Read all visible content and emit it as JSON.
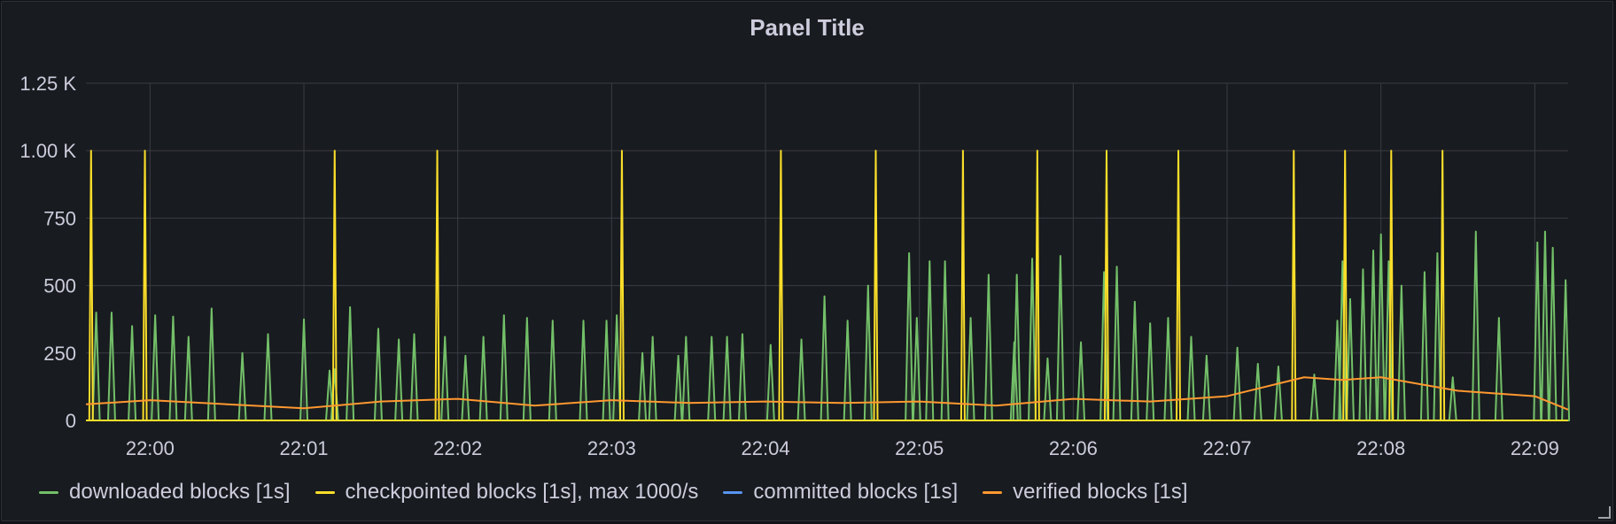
{
  "panel": {
    "title": "Panel Title",
    "colors": {
      "background": "#181b1f",
      "grid": "#3a3d44",
      "text": "#ccccdc"
    }
  },
  "chart_data": {
    "type": "line",
    "title": "Panel Title",
    "xlabel": "",
    "ylabel": "",
    "x_range": [
      "21:59:35",
      "22:09:13"
    ],
    "x_ticks": [
      "22:00",
      "22:01",
      "22:02",
      "22:03",
      "22:04",
      "22:05",
      "22:06",
      "22:07",
      "22:08",
      "22:09"
    ],
    "ylim": [
      0,
      1250
    ],
    "y_ticks": [
      {
        "value": 0,
        "label": "0"
      },
      {
        "value": 250,
        "label": "250"
      },
      {
        "value": 500,
        "label": "500"
      },
      {
        "value": 750,
        "label": "750"
      },
      {
        "value": 1000,
        "label": "1.00 K"
      },
      {
        "value": 1250,
        "label": "1.25 K"
      }
    ],
    "grid": true,
    "legend_position": "bottom-left",
    "series": [
      {
        "name": "downloaded blocks [1s]",
        "color": "#73bf69",
        "fill": true,
        "points": [
          [
            "21:59:39",
            400
          ],
          [
            "21:59:45",
            400
          ],
          [
            "21:59:53",
            350
          ],
          [
            "22:00:02",
            390
          ],
          [
            "22:00:09",
            385
          ],
          [
            "22:00:15",
            310
          ],
          [
            "22:00:24",
            415
          ],
          [
            "22:00:36",
            250
          ],
          [
            "22:00:46",
            320
          ],
          [
            "22:01:00",
            375
          ],
          [
            "22:01:10",
            185
          ],
          [
            "22:01:12",
            190
          ],
          [
            "22:01:18",
            420
          ],
          [
            "22:01:29",
            340
          ],
          [
            "22:01:37",
            300
          ],
          [
            "22:01:43",
            320
          ],
          [
            "22:01:55",
            310
          ],
          [
            "22:02:03",
            240
          ],
          [
            "22:02:10",
            310
          ],
          [
            "22:02:18",
            390
          ],
          [
            "22:02:27",
            380
          ],
          [
            "22:02:37",
            370
          ],
          [
            "22:02:49",
            370
          ],
          [
            "22:02:58",
            370
          ],
          [
            "22:03:02",
            390
          ],
          [
            "22:03:12",
            250
          ],
          [
            "22:03:16",
            310
          ],
          [
            "22:03:26",
            240
          ],
          [
            "22:03:29",
            310
          ],
          [
            "22:03:39",
            310
          ],
          [
            "22:03:45",
            310
          ],
          [
            "22:03:51",
            320
          ],
          [
            "22:04:02",
            280
          ],
          [
            "22:04:14",
            300
          ],
          [
            "22:04:23",
            460
          ],
          [
            "22:04:32",
            370
          ],
          [
            "22:04:40",
            500
          ],
          [
            "22:04:56",
            620
          ],
          [
            "22:04:59",
            380
          ],
          [
            "22:05:04",
            590
          ],
          [
            "22:05:10",
            590
          ],
          [
            "22:05:20",
            380
          ],
          [
            "22:05:27",
            540
          ],
          [
            "22:05:37",
            290
          ],
          [
            "22:05:38",
            540
          ],
          [
            "22:05:44",
            600
          ],
          [
            "22:05:50",
            230
          ],
          [
            "22:05:55",
            610
          ],
          [
            "22:06:03",
            290
          ],
          [
            "22:06:12",
            550
          ],
          [
            "22:06:17",
            570
          ],
          [
            "22:06:24",
            440
          ],
          [
            "22:06:30",
            360
          ],
          [
            "22:06:37",
            380
          ],
          [
            "22:06:46",
            310
          ],
          [
            "22:06:52",
            240
          ],
          [
            "22:07:04",
            270
          ],
          [
            "22:07:12",
            210
          ],
          [
            "22:07:20",
            200
          ],
          [
            "22:07:34",
            170
          ],
          [
            "22:07:43",
            370
          ],
          [
            "22:07:45",
            590
          ],
          [
            "22:07:48",
            450
          ],
          [
            "22:07:53",
            560
          ],
          [
            "22:07:57",
            630
          ],
          [
            "22:08:00",
            690
          ],
          [
            "22:08:03",
            590
          ],
          [
            "22:08:08",
            500
          ],
          [
            "22:08:17",
            550
          ],
          [
            "22:08:22",
            620
          ],
          [
            "22:08:28",
            160
          ],
          [
            "22:08:37",
            700
          ],
          [
            "22:08:46",
            380
          ],
          [
            "22:09:01",
            660
          ],
          [
            "22:09:04",
            700
          ],
          [
            "22:09:07",
            640
          ],
          [
            "22:09:12",
            520
          ]
        ]
      },
      {
        "name": "checkpointed blocks [1s], max 1000/s",
        "color": "#fade2a",
        "fill": false,
        "points": [
          [
            "21:59:37",
            1000
          ],
          [
            "21:59:58",
            1000
          ],
          [
            "22:01:12",
            1000
          ],
          [
            "22:01:52",
            1000
          ],
          [
            "22:03:04",
            1000
          ],
          [
            "22:04:06",
            1000
          ],
          [
            "22:04:43",
            1000
          ],
          [
            "22:05:17",
            1000
          ],
          [
            "22:05:46",
            1000
          ],
          [
            "22:06:13",
            1000
          ],
          [
            "22:06:41",
            1000
          ],
          [
            "22:07:26",
            1000
          ],
          [
            "22:07:46",
            1000
          ],
          [
            "22:08:04",
            1000
          ],
          [
            "22:08:24",
            1000
          ]
        ]
      },
      {
        "name": "committed blocks [1s]",
        "color": "#5794f2",
        "fill": false,
        "points": [
          [
            "21:59:35",
            0
          ],
          [
            "22:09:13",
            0
          ]
        ]
      },
      {
        "name": "verified blocks [1s]",
        "color": "#ff9830",
        "fill": false,
        "points": [
          [
            "21:59:35",
            60
          ],
          [
            "22:00:00",
            75
          ],
          [
            "22:00:30",
            60
          ],
          [
            "22:01:00",
            45
          ],
          [
            "22:01:30",
            70
          ],
          [
            "22:02:00",
            80
          ],
          [
            "22:02:30",
            55
          ],
          [
            "22:03:00",
            75
          ],
          [
            "22:03:30",
            65
          ],
          [
            "22:04:00",
            70
          ],
          [
            "22:04:30",
            65
          ],
          [
            "22:05:00",
            70
          ],
          [
            "22:05:30",
            55
          ],
          [
            "22:06:00",
            80
          ],
          [
            "22:06:30",
            70
          ],
          [
            "22:07:00",
            90
          ],
          [
            "22:07:30",
            160
          ],
          [
            "22:07:45",
            150
          ],
          [
            "22:08:00",
            160
          ],
          [
            "22:08:30",
            110
          ],
          [
            "22:09:00",
            90
          ],
          [
            "22:09:13",
            40
          ]
        ]
      }
    ]
  }
}
